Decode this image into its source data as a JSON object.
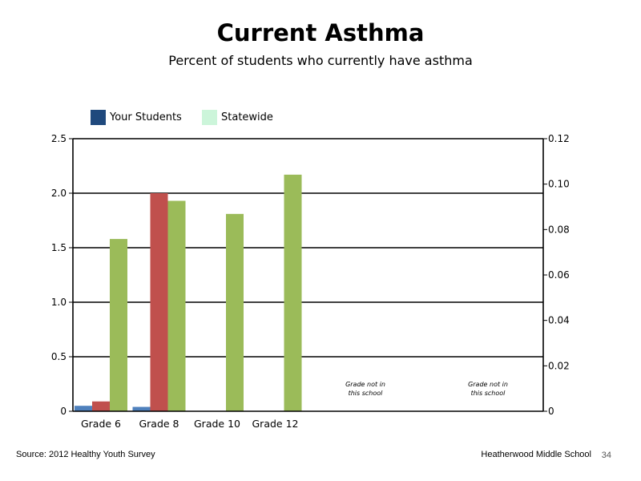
{
  "slide": {
    "title": "Current Asthma",
    "subtitle": "Percent of students who currently have asthma",
    "source": "Source: 2012 Healthy Youth Survey",
    "school": "Heatherwood Middle  School",
    "page_number": "34"
  },
  "legend": [
    {
      "label": "Your Students",
      "color": "#1f497d"
    },
    {
      "label": "Statewide",
      "color": "#ccf5da"
    }
  ],
  "chart_data": {
    "type": "bar",
    "categories": [
      "Grade 6",
      "Grade 8",
      "Grade 10",
      "Grade 12",
      "",
      ""
    ],
    "series": [
      {
        "color": "#4f81bd",
        "values": [
          0.05,
          0.04,
          null,
          null,
          null,
          null
        ]
      },
      {
        "color": "#c0504d",
        "values": [
          0.09,
          2.0,
          null,
          null,
          null,
          null
        ]
      },
      {
        "color": "#9bbb59",
        "values": [
          1.58,
          1.93,
          1.81,
          2.17,
          null,
          null
        ]
      }
    ],
    "y_left": {
      "min": 0,
      "max": 2.5,
      "ticks": [
        "0",
        "0.5",
        "1.0",
        "1.5",
        "2.0",
        "2.5"
      ]
    },
    "y_right": {
      "min": 0,
      "max": 0.12,
      "ticks": [
        "0",
        "0.02",
        "0.04",
        "0.06",
        "0.08",
        "0.10",
        "0.12"
      ]
    },
    "gridlines": true,
    "annotations": [
      {
        "category_index": 4,
        "lines": [
          "Grade not in",
          "this school"
        ]
      },
      {
        "category_index": 5,
        "lines": [
          "Grade not in",
          "this school"
        ]
      }
    ]
  }
}
